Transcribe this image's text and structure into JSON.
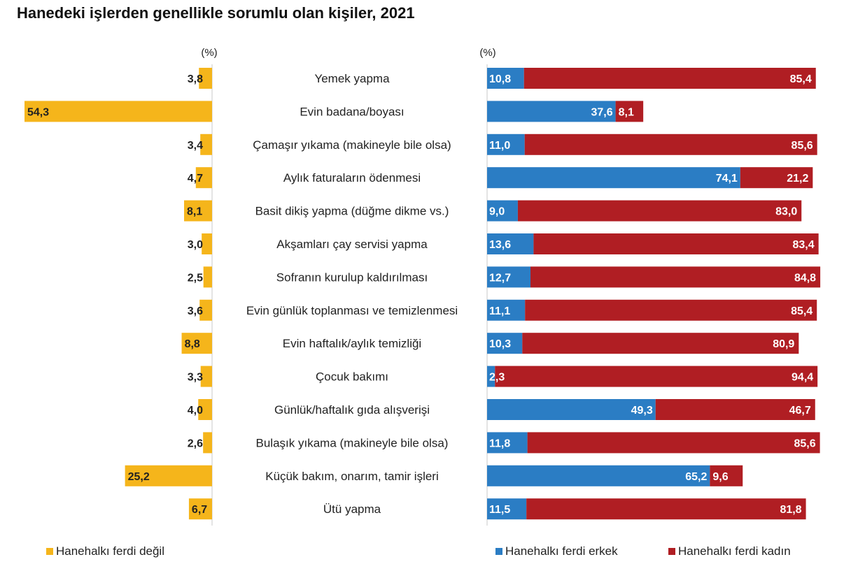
{
  "chart_data": {
    "type": "bar",
    "title": "Hanedeki işlerden genellikle sorumlu olan kişiler, 2021",
    "unit_label_left": "(%)",
    "unit_label_right": "(%)",
    "categories": [
      "Yemek yapma",
      "Evin badana/boyası",
      "Çamaşır yıkama (makineyle bile olsa)",
      "Aylık faturaların ödenmesi",
      "Basit dikiş yapma (düğme dikme vs.)",
      "Akşamları çay servisi yapma",
      "Sofranın kurulup kaldırılması",
      "Evin günlük toplanması ve temizlenmesi",
      "Evin haftalık/aylık temizliği",
      "Çocuk bakımı",
      "Günlük/haftalık gıda alışverişi",
      "Bulaşık yıkama (makineyle bile olsa)",
      "Küçük bakım, onarım, tamir işleri",
      "Ütü yapma"
    ],
    "series": [
      {
        "name": "Hanehalkı ferdi değil",
        "color": "#F5B51B",
        "values": [
          3.8,
          54.3,
          3.4,
          4.7,
          8.1,
          3.0,
          2.5,
          3.6,
          8.8,
          3.3,
          4.0,
          2.6,
          25.2,
          6.7
        ],
        "labels": [
          "3,8",
          "54,3",
          "3,4",
          "4,7",
          "8,1",
          "3,0",
          "2,5",
          "3,6",
          "8,8",
          "3,3",
          "4,0",
          "2,6",
          "25,2",
          "6,7"
        ]
      },
      {
        "name": "Hanehalkı ferdi erkek",
        "color": "#2B7DC4",
        "values": [
          10.8,
          37.6,
          11.0,
          74.1,
          9.0,
          13.6,
          12.7,
          11.1,
          10.3,
          2.3,
          49.3,
          11.8,
          65.2,
          11.5
        ],
        "labels": [
          "10,8",
          "37,6",
          "11,0",
          "74,1",
          "9,0",
          "13,6",
          "12,7",
          "11,1",
          "10,3",
          "2,3",
          "49,3",
          "11,8",
          "65,2",
          "11,5"
        ]
      },
      {
        "name": "Hanehalkı ferdi kadın",
        "color": "#B01E23",
        "values": [
          85.4,
          8.1,
          85.6,
          21.2,
          83.0,
          83.4,
          84.8,
          85.4,
          80.9,
          94.4,
          46.7,
          85.6,
          9.6,
          81.8
        ],
        "labels": [
          "85,4",
          "8,1",
          "85,6",
          "21,2",
          "83,0",
          "83,4",
          "84,8",
          "85,4",
          "80,9",
          "94,4",
          "46,7",
          "85,6",
          "9,6",
          "81,8"
        ]
      }
    ],
    "legend_position": "bottom",
    "grid": false
  }
}
